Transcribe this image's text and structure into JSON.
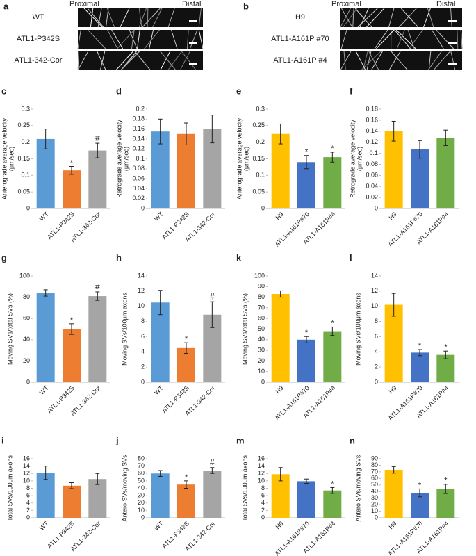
{
  "kymographs": [
    {
      "panel": "a",
      "start_label": "Proximal",
      "end_label": "Distal",
      "rows": [
        "WT",
        "ATL1-P342S",
        "ATL1-342-Cor"
      ]
    },
    {
      "panel": "b",
      "start_label": "Proximal",
      "end_label": "Distal",
      "rows": [
        "H9",
        "ATL1-A161P #70",
        "ATL1-A161P #4"
      ]
    }
  ],
  "chart_data": [
    {
      "type": "bar",
      "panel": "c",
      "ylabel": [
        "Anterograde average velocity",
        "(μm/sec)"
      ],
      "categories": [
        "WT",
        "ATL1-P342S",
        "ATL1-342-Cor"
      ],
      "values": [
        0.21,
        0.115,
        0.175
      ],
      "errors": [
        0.03,
        0.012,
        0.022
      ],
      "annotations": [
        null,
        "*",
        "#"
      ],
      "colors": [
        "#5b9bd5",
        "#ed7d31",
        "#a5a5a5"
      ],
      "ylim": [
        0,
        0.3
      ],
      "yticks": [
        0,
        0.05,
        0.1,
        0.15,
        0.2,
        0.25,
        0.3
      ]
    },
    {
      "type": "bar",
      "panel": "d",
      "ylabel": [
        "Retrograde average velocity",
        "(μm/sec)"
      ],
      "categories": [
        "WT",
        "ATL1-P342S",
        "ATL1-342-Cor"
      ],
      "values": [
        0.155,
        0.15,
        0.16
      ],
      "errors": [
        0.025,
        0.022,
        0.028
      ],
      "annotations": [
        null,
        null,
        null
      ],
      "colors": [
        "#5b9bd5",
        "#ed7d31",
        "#a5a5a5"
      ],
      "ylim": [
        0,
        0.2
      ],
      "yticks": [
        0,
        0.02,
        0.04,
        0.06,
        0.08,
        0.1,
        0.12,
        0.14,
        0.16,
        0.18,
        0.2
      ]
    },
    {
      "type": "bar",
      "panel": "e",
      "ylabel": [
        "Anterograde average velocity",
        "(μm/sec)"
      ],
      "categories": [
        "H9",
        "ATL1-A161P#70",
        "ATL1-A161P#4"
      ],
      "values": [
        0.225,
        0.14,
        0.155
      ],
      "errors": [
        0.03,
        0.02,
        0.015
      ],
      "annotations": [
        null,
        "*",
        "*"
      ],
      "colors": [
        "#ffc000",
        "#4472c4",
        "#70ad47"
      ],
      "ylim": [
        0,
        0.3
      ],
      "yticks": [
        0,
        0.05,
        0.1,
        0.15,
        0.2,
        0.25,
        0.3
      ]
    },
    {
      "type": "bar",
      "panel": "f",
      "ylabel": [
        "Retrograde average velocity",
        "(μm/sec)"
      ],
      "categories": [
        "H9",
        "ATL1-A161P#70",
        "ATL1-A161P#4"
      ],
      "values": [
        0.14,
        0.107,
        0.128
      ],
      "errors": [
        0.018,
        0.016,
        0.014
      ],
      "annotations": [
        null,
        null,
        null
      ],
      "colors": [
        "#ffc000",
        "#4472c4",
        "#70ad47"
      ],
      "ylim": [
        0,
        0.18
      ],
      "yticks": [
        0,
        0.02,
        0.04,
        0.06,
        0.08,
        0.1,
        0.12,
        0.14,
        0.16,
        0.18
      ]
    },
    {
      "type": "bar",
      "panel": "g",
      "ylabel": "Moving SVs/total SVs (%)",
      "categories": [
        "WT",
        "ATL1-P342S",
        "ATL1-342-Cor"
      ],
      "values": [
        84,
        50,
        81
      ],
      "errors": [
        3,
        5,
        4
      ],
      "annotations": [
        null,
        "*",
        "#"
      ],
      "colors": [
        "#5b9bd5",
        "#ed7d31",
        "#a5a5a5"
      ],
      "ylim": [
        0,
        100
      ],
      "yticks": [
        0,
        20,
        40,
        60,
        80,
        100
      ]
    },
    {
      "type": "bar",
      "panel": "h",
      "ylabel": "Moving SVs/100μm axons",
      "categories": [
        "WT",
        "ATL1-P342S",
        "ATL1-342-Cor"
      ],
      "values": [
        10.5,
        4.5,
        8.9
      ],
      "errors": [
        1.6,
        0.7,
        1.7
      ],
      "annotations": [
        null,
        "*",
        "#"
      ],
      "colors": [
        "#5b9bd5",
        "#ed7d31",
        "#a5a5a5"
      ],
      "ylim": [
        0,
        14
      ],
      "yticks": [
        0,
        2,
        4,
        6,
        8,
        10,
        12,
        14
      ]
    },
    {
      "type": "bar",
      "panel": "k",
      "ylabel": "Moving SVs/total SVs (%)",
      "categories": [
        "H9",
        "ATL1-A161P#70",
        "ATL1-A161P#4"
      ],
      "values": [
        83,
        40,
        48
      ],
      "errors": [
        3,
        3,
        4
      ],
      "annotations": [
        null,
        "*",
        "*"
      ],
      "colors": [
        "#ffc000",
        "#4472c4",
        "#70ad47"
      ],
      "ylim": [
        0,
        100
      ],
      "yticks": [
        0,
        10,
        20,
        30,
        40,
        50,
        60,
        70,
        80,
        90,
        100
      ]
    },
    {
      "type": "bar",
      "panel": "l",
      "ylabel": "Moving SVs/100μm axons",
      "categories": [
        "H9",
        "ATL1-A161P#70",
        "ATL1-A161P#4"
      ],
      "values": [
        10.2,
        3.9,
        3.6
      ],
      "errors": [
        1.5,
        0.4,
        0.5
      ],
      "annotations": [
        null,
        "*",
        "*"
      ],
      "colors": [
        "#ffc000",
        "#4472c4",
        "#70ad47"
      ],
      "ylim": [
        0,
        14
      ],
      "yticks": [
        0,
        2,
        4,
        6,
        8,
        10,
        12,
        14
      ]
    },
    {
      "type": "bar",
      "panel": "i",
      "ylabel": "Total SVs/100μm axons",
      "categories": [
        "WT",
        "ATL1-P342S",
        "ATL1-342-Cor"
      ],
      "values": [
        12.2,
        8.7,
        10.5
      ],
      "errors": [
        1.8,
        0.8,
        1.5
      ],
      "annotations": [
        null,
        null,
        null
      ],
      "colors": [
        "#5b9bd5",
        "#ed7d31",
        "#a5a5a5"
      ],
      "ylim": [
        0,
        16
      ],
      "yticks": [
        0,
        2,
        4,
        6,
        8,
        10,
        12,
        14,
        16
      ]
    },
    {
      "type": "bar",
      "panel": "j",
      "ylabel": "Antero SVs/moving SVs",
      "categories": [
        "WT",
        "ATL1-P342S",
        "ATL1-342-Cor"
      ],
      "values": [
        60,
        45,
        64
      ],
      "errors": [
        4,
        5,
        4
      ],
      "annotations": [
        null,
        "*",
        "#"
      ],
      "colors": [
        "#5b9bd5",
        "#ed7d31",
        "#a5a5a5"
      ],
      "ylim": [
        0,
        80
      ],
      "yticks": [
        0,
        10,
        20,
        30,
        40,
        50,
        60,
        70,
        80
      ]
    },
    {
      "type": "bar",
      "panel": "m",
      "ylabel": "Total SVs/100μm axons",
      "categories": [
        "H9",
        "ATL1-A161P#70",
        "ATL1-A161P#4"
      ],
      "values": [
        11.8,
        9.9,
        7.4
      ],
      "errors": [
        1.8,
        0.6,
        0.8
      ],
      "annotations": [
        null,
        null,
        "*"
      ],
      "colors": [
        "#ffc000",
        "#4472c4",
        "#70ad47"
      ],
      "ylim": [
        0,
        16
      ],
      "yticks": [
        0,
        2,
        4,
        6,
        8,
        10,
        12,
        14,
        16
      ]
    },
    {
      "type": "bar",
      "panel": "n",
      "ylabel": "Antero SVs/moving SVs",
      "categories": [
        "H9",
        "ATL1-A161P#70",
        "ATL1-A161P#4"
      ],
      "values": [
        73,
        38,
        44
      ],
      "errors": [
        5,
        6,
        7
      ],
      "annotations": [
        null,
        "*",
        "*"
      ],
      "colors": [
        "#ffc000",
        "#4472c4",
        "#70ad47"
      ],
      "ylim": [
        0,
        90
      ],
      "yticks": [
        0,
        10,
        20,
        30,
        40,
        50,
        60,
        70,
        80,
        90
      ]
    }
  ]
}
